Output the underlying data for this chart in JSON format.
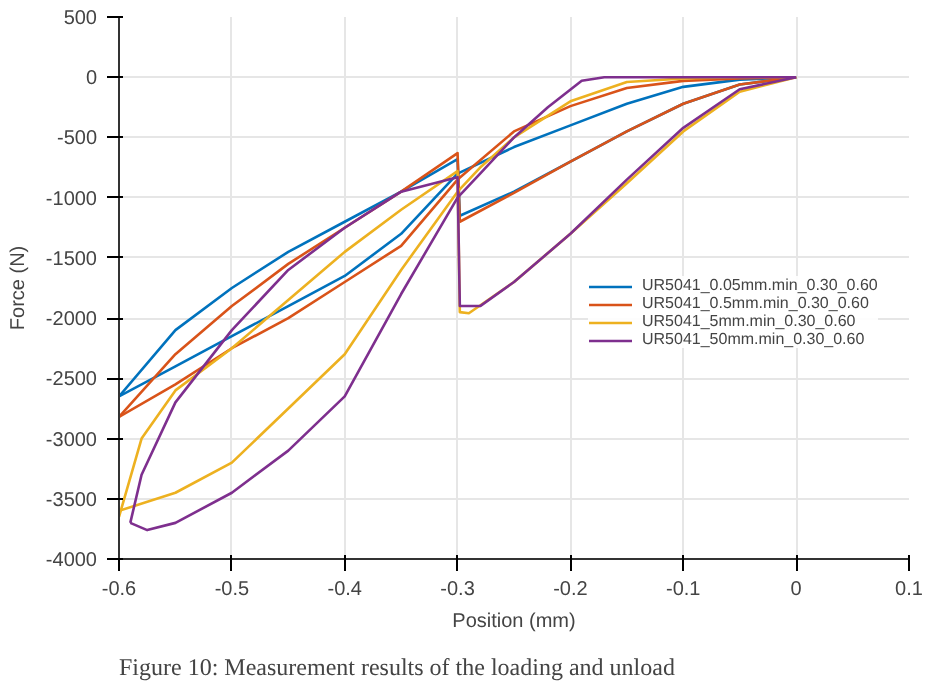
{
  "chart_data": {
    "type": "line",
    "xlabel": "Position (mm)",
    "ylabel": "Force (N)",
    "annotations": [
      "Figure 10: Measurement results of the loading and unload"
    ],
    "xlim": [
      -0.6,
      0.1
    ],
    "ylim": [
      -4000,
      500
    ],
    "xticks": [
      -0.6,
      -0.5,
      -0.4,
      -0.3,
      -0.2,
      -0.1,
      0,
      0.1
    ],
    "yticks": [
      -4000,
      -3500,
      -3000,
      -2500,
      -2000,
      -1500,
      -1000,
      -500,
      0,
      500
    ],
    "grid": true,
    "legend": "right",
    "line_style": "solid",
    "series": [
      {
        "name": "UR5041_0.05mm.min_0.30_0.60",
        "color": "#0072bd",
        "x": [
          -0.6,
          -0.55,
          -0.5,
          -0.45,
          -0.4,
          -0.35,
          -0.3,
          -0.298,
          -0.25,
          -0.2,
          -0.15,
          -0.1,
          -0.05,
          0
        ],
        "values": [
          -2650,
          -2100,
          -1750,
          -1450,
          -1200,
          -950,
          -680,
          -1150,
          -950,
          -700,
          -450,
          -220,
          -60,
          0
        ]
      },
      {
        "color": "#0072bd",
        "x": [
          -0.6,
          -0.55,
          -0.5,
          -0.45,
          -0.4,
          -0.35,
          -0.3,
          -0.25,
          -0.2,
          -0.15,
          -0.1,
          -0.05,
          0
        ],
        "values": [
          -2650,
          -2400,
          -2150,
          -1900,
          -1650,
          -1300,
          -800,
          -580,
          -400,
          -220,
          -80,
          -20,
          0
        ]
      },
      {
        "name": "UR5041_0.5mm.min_0.30_0.60",
        "color": "#d95319",
        "x": [
          -0.6,
          -0.55,
          -0.5,
          -0.45,
          -0.4,
          -0.35,
          -0.3,
          -0.298,
          -0.25,
          -0.2,
          -0.15,
          -0.1,
          -0.05,
          0
        ],
        "values": [
          -2820,
          -2300,
          -1900,
          -1550,
          -1250,
          -950,
          -630,
          -1200,
          -960,
          -700,
          -450,
          -220,
          -60,
          0
        ]
      },
      {
        "color": "#d95319",
        "x": [
          -0.6,
          -0.55,
          -0.5,
          -0.45,
          -0.4,
          -0.35,
          -0.3,
          -0.25,
          -0.2,
          -0.15,
          -0.1,
          -0.05,
          0
        ],
        "values": [
          -2820,
          -2550,
          -2250,
          -2000,
          -1700,
          -1400,
          -850,
          -450,
          -240,
          -90,
          -30,
          -10,
          0
        ]
      },
      {
        "name": "UR5041_5mm.min_0.30_0.60",
        "color": "#edb120",
        "x": [
          -0.6,
          -0.58,
          -0.55,
          -0.5,
          -0.45,
          -0.4,
          -0.35,
          -0.3,
          -0.298,
          -0.29,
          -0.25,
          -0.2,
          -0.15,
          -0.1,
          -0.05,
          0
        ],
        "values": [
          -3650,
          -3000,
          -2600,
          -2250,
          -1850,
          -1450,
          -1100,
          -780,
          -1950,
          -1960,
          -1700,
          -1300,
          -880,
          -450,
          -120,
          0
        ]
      },
      {
        "color": "#edb120",
        "x": [
          -0.6,
          -0.55,
          -0.5,
          -0.45,
          -0.4,
          -0.35,
          -0.3,
          -0.28,
          -0.25,
          -0.2,
          -0.15,
          -0.1,
          -0.05,
          0
        ],
        "values": [
          -3600,
          -3450,
          -3200,
          -2750,
          -2300,
          -1600,
          -950,
          -750,
          -500,
          -200,
          -40,
          -10,
          0,
          0
        ]
      },
      {
        "name": "UR5041_50mm.min_0.30_0.60",
        "color": "#7e2f8e",
        "x": [
          -0.59,
          -0.58,
          -0.55,
          -0.5,
          -0.45,
          -0.4,
          -0.35,
          -0.3,
          -0.298,
          -0.28,
          -0.25,
          -0.2,
          -0.15,
          -0.1,
          -0.05,
          0
        ],
        "values": [
          -3700,
          -3300,
          -2700,
          -2100,
          -1600,
          -1250,
          -950,
          -830,
          -1900,
          -1900,
          -1700,
          -1300,
          -850,
          -420,
          -100,
          0
        ]
      },
      {
        "color": "#7e2f8e",
        "x": [
          -0.59,
          -0.575,
          -0.55,
          -0.5,
          -0.45,
          -0.4,
          -0.35,
          -0.3,
          -0.28,
          -0.25,
          -0.22,
          -0.19,
          -0.17,
          -0.1,
          0
        ],
        "values": [
          -3700,
          -3760,
          -3700,
          -3450,
          -3100,
          -2650,
          -1800,
          -1000,
          -800,
          -500,
          -250,
          -30,
          0,
          0,
          0
        ]
      }
    ]
  }
}
